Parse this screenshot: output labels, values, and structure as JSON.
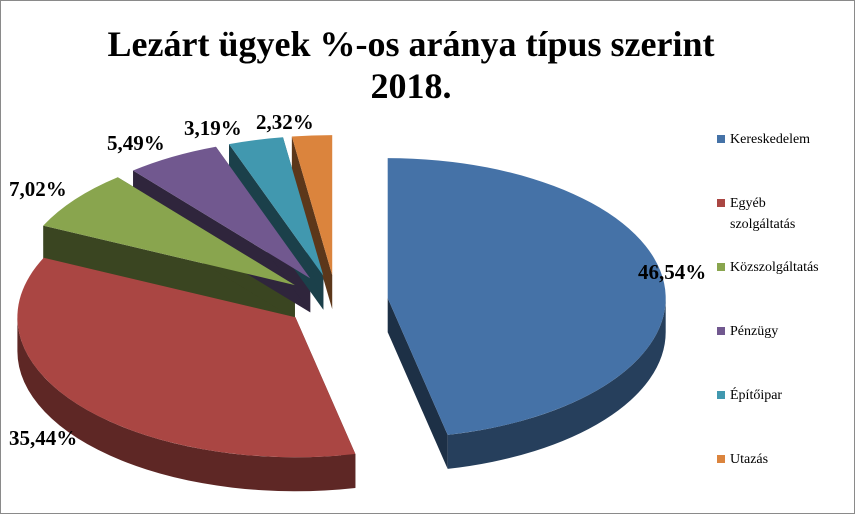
{
  "chart_data": {
    "type": "pie",
    "title_lines": [
      "Lezárt ügyek %-os aránya típus szerint",
      "2018."
    ],
    "categories": [
      "Kereskedelem",
      "Egyéb szolgáltatás",
      "Közszolgáltatás",
      "Pénzügy",
      "Építőipar",
      "Utazás"
    ],
    "values": [
      46.54,
      35.44,
      7.02,
      5.49,
      3.19,
      2.32
    ],
    "data_labels": [
      "46,54%",
      "35,44%",
      "7,02%",
      "5,49%",
      "3,19%",
      "2,32%"
    ],
    "colors": [
      "#4572A7",
      "#AA4643",
      "#89A54E",
      "#71588F",
      "#4198AF",
      "#DB843D"
    ],
    "style": "3d-exploded",
    "legend_position": "right"
  },
  "legend": {
    "items": [
      {
        "lines": [
          "Kereskedelem"
        ],
        "color": "#4572A7"
      },
      {
        "lines": [
          "Egyéb",
          "szolgáltatás"
        ],
        "color": "#AA4643"
      },
      {
        "lines": [
          "Közszolgáltatás"
        ],
        "color": "#89A54E"
      },
      {
        "lines": [
          "Pénzügy"
        ],
        "color": "#71588F"
      },
      {
        "lines": [
          "Építőipar"
        ],
        "color": "#4198AF"
      },
      {
        "lines": [
          "Utazás"
        ],
        "color": "#DB843D"
      }
    ]
  }
}
